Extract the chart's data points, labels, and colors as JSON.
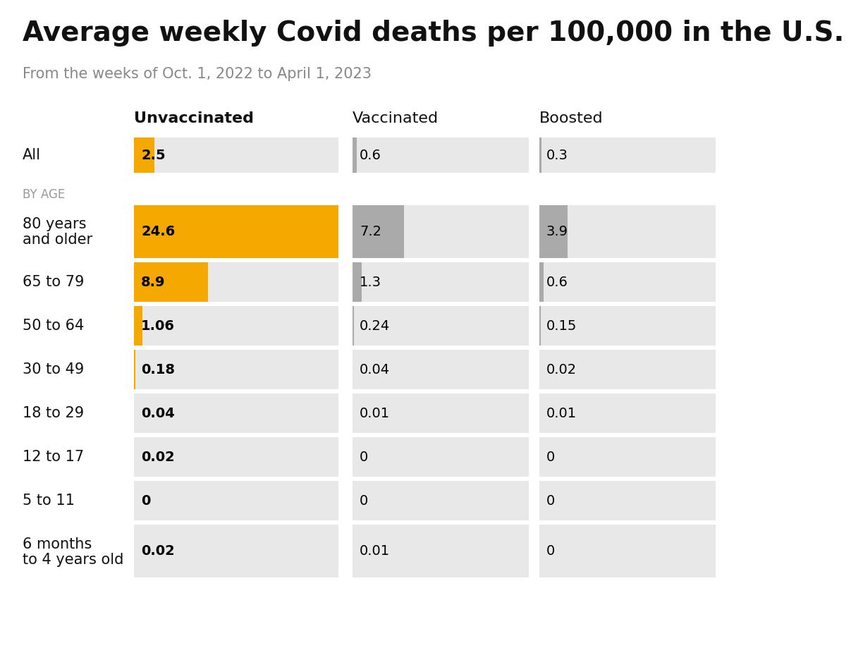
{
  "title": "Average weekly Covid deaths per 100,000 in the U.S.",
  "subtitle": "From the weeks of Oct. 1, 2022 to April 1, 2023",
  "col_headers": [
    "Unvaccinated",
    "Vaccinated",
    "Boosted"
  ],
  "col_header_bold": [
    true,
    false,
    false
  ],
  "by_age_label": "BY AGE",
  "rows": [
    {
      "label": "All",
      "label2": "",
      "is_all": true,
      "tall": false,
      "values": [
        2.5,
        0.6,
        0.3
      ],
      "display": [
        "2.5",
        "0.6",
        "0.3"
      ]
    },
    {
      "label": "80 years",
      "label2": "and older",
      "is_all": false,
      "tall": true,
      "values": [
        24.6,
        7.2,
        3.9
      ],
      "display": [
        "24.6",
        "7.2",
        "3.9"
      ]
    },
    {
      "label": "65 to 79",
      "label2": "",
      "is_all": false,
      "tall": false,
      "values": [
        8.9,
        1.3,
        0.6
      ],
      "display": [
        "8.9",
        "1.3",
        "0.6"
      ]
    },
    {
      "label": "50 to 64",
      "label2": "",
      "is_all": false,
      "tall": false,
      "values": [
        1.06,
        0.24,
        0.15
      ],
      "display": [
        "1.06",
        "0.24",
        "0.15"
      ]
    },
    {
      "label": "30 to 49",
      "label2": "",
      "is_all": false,
      "tall": false,
      "values": [
        0.18,
        0.04,
        0.02
      ],
      "display": [
        "0.18",
        "0.04",
        "0.02"
      ]
    },
    {
      "label": "18 to 29",
      "label2": "",
      "is_all": false,
      "tall": false,
      "values": [
        0.04,
        0.01,
        0.01
      ],
      "display": [
        "0.04",
        "0.01",
        "0.01"
      ]
    },
    {
      "label": "12 to 17",
      "label2": "",
      "is_all": false,
      "tall": false,
      "values": [
        0.02,
        0.0,
        0.0
      ],
      "display": [
        "0.02",
        "0",
        "0"
      ]
    },
    {
      "label": "5 to 11",
      "label2": "",
      "is_all": false,
      "tall": false,
      "values": [
        0.0,
        0.0,
        0.0
      ],
      "display": [
        "0",
        "0",
        "0"
      ]
    },
    {
      "label": "6 months",
      "label2": "to 4 years old",
      "is_all": false,
      "tall": true,
      "values": [
        0.02,
        0.01,
        0.0
      ],
      "display": [
        "0.02",
        "0.01",
        "0"
      ]
    }
  ],
  "max_value": 24.6,
  "bar_color_unvacc": "#F5A800",
  "bar_color_vacc": "#AAAAAA",
  "bar_color_boosted": "#AAAAAA",
  "bg_cell_color": "#E8E8E8",
  "background_color": "#FFFFFF",
  "title_fontsize": 28,
  "subtitle_fontsize": 15,
  "header_fontsize": 16,
  "label_fontsize": 15,
  "value_fontsize": 14,
  "byage_fontsize": 12
}
